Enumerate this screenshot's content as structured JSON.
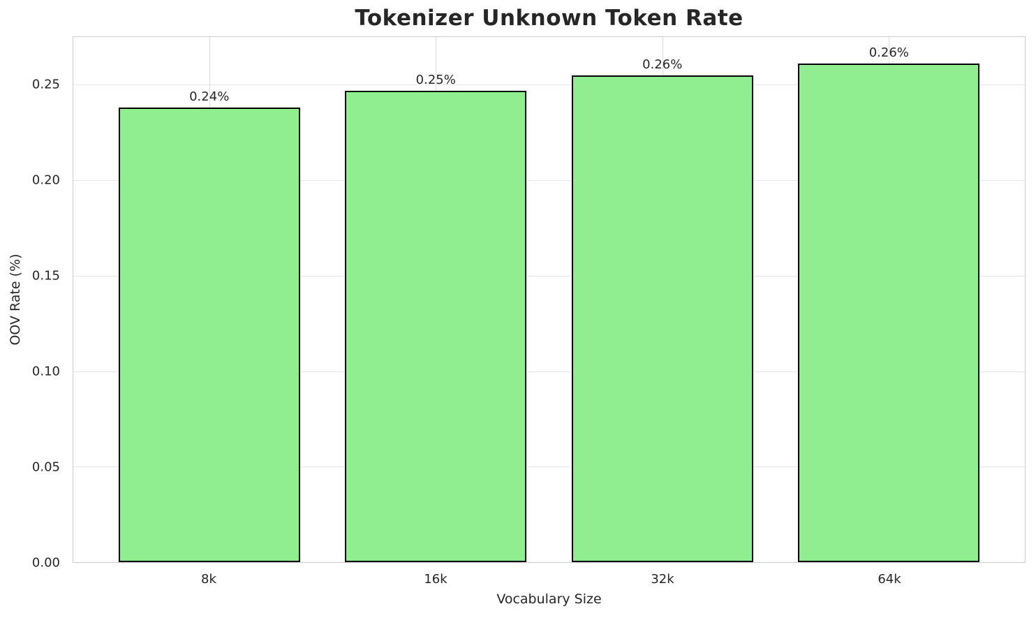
{
  "chart_data": {
    "type": "bar",
    "title": "Tokenizer Unknown Token Rate",
    "xlabel": "Vocabulary Size",
    "ylabel": "OOV Rate (%)",
    "categories": [
      "8k",
      "16k",
      "32k",
      "64k"
    ],
    "values": [
      0.238,
      0.247,
      0.255,
      0.261
    ],
    "bar_labels": [
      "0.24%",
      "0.25%",
      "0.26%",
      "0.26%"
    ],
    "ylim": [
      0,
      0.275
    ],
    "xlim": [
      -0.6,
      3.6
    ],
    "bar_width_data_units": 0.8,
    "yticks": [
      0.0,
      0.05,
      0.1,
      0.15,
      0.2,
      0.25
    ],
    "ytick_labels": [
      "0.00",
      "0.05",
      "0.10",
      "0.15",
      "0.20",
      "0.25"
    ],
    "grid": true,
    "legend": null,
    "colors": {
      "bar_fill": "#90EE90",
      "bar_edge": "#000000",
      "grid": "#e5e5e5",
      "spine": "#cccccc",
      "text": "#262626",
      "background": "#ffffff"
    }
  }
}
